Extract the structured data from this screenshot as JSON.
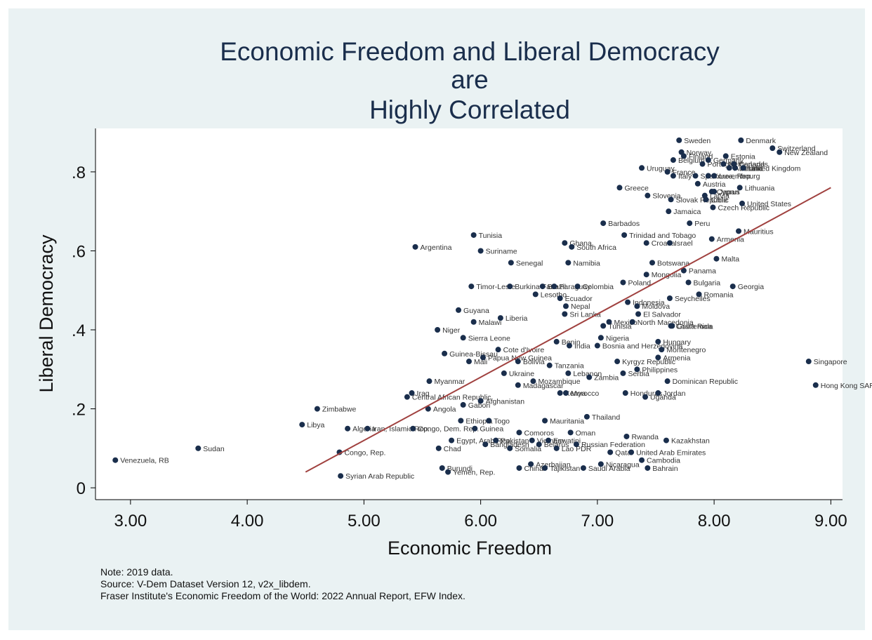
{
  "chart_data": {
    "type": "scatter",
    "title": [
      "Economic Freedom and Liberal Democracy",
      "are",
      "Highly Correlated"
    ],
    "xlabel": "Economic Freedom",
    "ylabel": "Liberal Democracy",
    "xlim": [
      2.7,
      9.1
    ],
    "ylim": [
      -0.03,
      0.91
    ],
    "xticks": [
      "3.00",
      "4.00",
      "5.00",
      "6.00",
      "7.00",
      "8.00",
      "9.00"
    ],
    "yticks": [
      ".8",
      ".6",
      ".4",
      ".2",
      "0"
    ],
    "grid": false,
    "colors": {
      "background": "#eaf2f3",
      "plot_area": "#ffffff",
      "marker": "#1a2e4c",
      "fit_line": "#a0413f",
      "title": "#1a2e4c"
    },
    "fit_line": [
      [
        4.5,
        0.04
      ],
      [
        9.0,
        0.76
      ]
    ],
    "points": [
      {
        "label": "Venezuela, RB",
        "x": 2.87,
        "y": 0.07
      },
      {
        "label": "Sudan",
        "x": 3.58,
        "y": 0.1
      },
      {
        "label": "Libya",
        "x": 4.47,
        "y": 0.16
      },
      {
        "label": "Zimbabwe",
        "x": 4.6,
        "y": 0.2
      },
      {
        "label": "Syrian Arab Republic",
        "x": 4.8,
        "y": 0.03
      },
      {
        "label": "Congo, Rep.",
        "x": 4.79,
        "y": 0.09
      },
      {
        "label": "Algeria",
        "x": 4.86,
        "y": 0.15
      },
      {
        "label": "Iran, Islamic Rep.",
        "x": 5.03,
        "y": 0.15
      },
      {
        "label": "Congo, Dem. Rep.",
        "x": 5.42,
        "y": 0.15
      },
      {
        "label": "Angola",
        "x": 5.55,
        "y": 0.2
      },
      {
        "label": "Argentina",
        "x": 5.44,
        "y": 0.61
      },
      {
        "label": "Iraq",
        "x": 5.41,
        "y": 0.24
      },
      {
        "label": "Central African Republic",
        "x": 5.37,
        "y": 0.23
      },
      {
        "label": "Myanmar",
        "x": 5.56,
        "y": 0.27
      },
      {
        "label": "Niger",
        "x": 5.63,
        "y": 0.4
      },
      {
        "label": "Chad",
        "x": 5.64,
        "y": 0.1
      },
      {
        "label": "Burundi",
        "x": 5.67,
        "y": 0.05
      },
      {
        "label": "Yemen, Rep.",
        "x": 5.72,
        "y": 0.04
      },
      {
        "label": "Guinea-Bissau",
        "x": 5.69,
        "y": 0.34
      },
      {
        "label": "Egypt, Arab Rep.",
        "x": 5.75,
        "y": 0.12
      },
      {
        "label": "Ethiopia",
        "x": 5.83,
        "y": 0.17
      },
      {
        "label": "Gabon",
        "x": 5.85,
        "y": 0.21
      },
      {
        "label": "Guyana",
        "x": 5.81,
        "y": 0.45
      },
      {
        "label": "Sierra Leone",
        "x": 5.85,
        "y": 0.38
      },
      {
        "label": "Mali",
        "x": 5.9,
        "y": 0.32
      },
      {
        "label": "Tunisia",
        "x": 5.94,
        "y": 0.64
      },
      {
        "label": "Malawi",
        "x": 5.94,
        "y": 0.42
      },
      {
        "label": "Timor-Leste",
        "x": 5.92,
        "y": 0.51
      },
      {
        "label": "Guinea",
        "x": 5.95,
        "y": 0.15
      },
      {
        "label": "Suriname",
        "x": 6.0,
        "y": 0.6
      },
      {
        "label": "Papua New Guinea",
        "x": 6.02,
        "y": 0.33
      },
      {
        "label": "Afghanistan",
        "x": 6.0,
        "y": 0.22
      },
      {
        "label": "Togo",
        "x": 6.07,
        "y": 0.17
      },
      {
        "label": "Liberia",
        "x": 6.17,
        "y": 0.43
      },
      {
        "label": "Cote d'Ivoire",
        "x": 6.15,
        "y": 0.35
      },
      {
        "label": "Pakistan",
        "x": 6.13,
        "y": 0.12
      },
      {
        "label": "Bangladesh",
        "x": 6.04,
        "y": 0.11
      },
      {
        "label": "Senegal",
        "x": 6.26,
        "y": 0.57
      },
      {
        "label": "Burkina Faso",
        "x": 6.25,
        "y": 0.51
      },
      {
        "label": "Ukraine",
        "x": 6.2,
        "y": 0.29
      },
      {
        "label": "Bolivia",
        "x": 6.32,
        "y": 0.32
      },
      {
        "label": "Madagascar",
        "x": 6.32,
        "y": 0.26
      },
      {
        "label": "Somalia",
        "x": 6.25,
        "y": 0.1
      },
      {
        "label": "Comoros",
        "x": 6.33,
        "y": 0.14
      },
      {
        "label": "China",
        "x": 6.33,
        "y": 0.05
      },
      {
        "label": "Lesotho",
        "x": 6.47,
        "y": 0.49
      },
      {
        "label": "Brazil",
        "x": 6.53,
        "y": 0.51
      },
      {
        "label": "Mozambique",
        "x": 6.45,
        "y": 0.27
      },
      {
        "label": "Azerbaijan",
        "x": 6.43,
        "y": 0.06
      },
      {
        "label": "Vietnam",
        "x": 6.44,
        "y": 0.12
      },
      {
        "label": "Tajikistan",
        "x": 6.55,
        "y": 0.05
      },
      {
        "label": "Belarus",
        "x": 6.5,
        "y": 0.11
      },
      {
        "label": "Mauritania",
        "x": 6.55,
        "y": 0.17
      },
      {
        "label": "Tanzania",
        "x": 6.59,
        "y": 0.31
      },
      {
        "label": "Eswatini",
        "x": 6.58,
        "y": 0.12
      },
      {
        "label": "Ghana",
        "x": 6.72,
        "y": 0.62
      },
      {
        "label": "South Africa",
        "x": 6.78,
        "y": 0.61
      },
      {
        "label": "Namibia",
        "x": 6.75,
        "y": 0.57
      },
      {
        "label": "Paraguay",
        "x": 6.63,
        "y": 0.51
      },
      {
        "label": "Ecuador",
        "x": 6.68,
        "y": 0.48
      },
      {
        "label": "Nepal",
        "x": 6.73,
        "y": 0.46
      },
      {
        "label": "Sri Lanka",
        "x": 6.72,
        "y": 0.44
      },
      {
        "label": "Colombia",
        "x": 6.83,
        "y": 0.51
      },
      {
        "label": "Benin",
        "x": 6.65,
        "y": 0.37
      },
      {
        "label": "India",
        "x": 6.76,
        "y": 0.36
      },
      {
        "label": "Lebanon",
        "x": 6.75,
        "y": 0.29
      },
      {
        "label": "Morocco",
        "x": 6.73,
        "y": 0.24
      },
      {
        "label": "Kenya",
        "x": 6.68,
        "y": 0.24
      },
      {
        "label": "Oman",
        "x": 6.77,
        "y": 0.14
      },
      {
        "label": "Lao PDR",
        "x": 6.65,
        "y": 0.1
      },
      {
        "label": "Russian Federation",
        "x": 6.82,
        "y": 0.11
      },
      {
        "label": "Saudi Arabia",
        "x": 6.88,
        "y": 0.05
      },
      {
        "label": "Zambia",
        "x": 6.93,
        "y": 0.28
      },
      {
        "label": "Thailand",
        "x": 6.91,
        "y": 0.18
      },
      {
        "label": "Barbados",
        "x": 7.05,
        "y": 0.67
      },
      {
        "label": "Nigeria",
        "x": 7.03,
        "y": 0.38
      },
      {
        "label": "Bosnia and Herzegovina",
        "x": 7.0,
        "y": 0.36
      },
      {
        "label": "Tunisia",
        "x": 7.05,
        "y": 0.41
      },
      {
        "label": "Mexico",
        "x": 7.1,
        "y": 0.42
      },
      {
        "label": "Nicaragua",
        "x": 7.03,
        "y": 0.06
      },
      {
        "label": "Qatar",
        "x": 7.11,
        "y": 0.09
      },
      {
        "label": "Kyrgyz Republic",
        "x": 7.17,
        "y": 0.32
      },
      {
        "label": "Greece",
        "x": 7.19,
        "y": 0.76
      },
      {
        "label": "Trinidad and Tobago",
        "x": 7.23,
        "y": 0.64
      },
      {
        "label": "Poland",
        "x": 7.22,
        "y": 0.52
      },
      {
        "label": "Indonesia",
        "x": 7.26,
        "y": 0.47
      },
      {
        "label": "El Salvador",
        "x": 7.35,
        "y": 0.44
      },
      {
        "label": "Moldova",
        "x": 7.34,
        "y": 0.46
      },
      {
        "label": "North Macedonia",
        "x": 7.3,
        "y": 0.42
      },
      {
        "label": "Serbia",
        "x": 7.22,
        "y": 0.29
      },
      {
        "label": "Philippines",
        "x": 7.34,
        "y": 0.3
      },
      {
        "label": "Honduras",
        "x": 7.24,
        "y": 0.24
      },
      {
        "label": "Rwanda",
        "x": 7.25,
        "y": 0.13
      },
      {
        "label": "United Arab Emirates",
        "x": 7.29,
        "y": 0.09
      },
      {
        "label": "Cambodia",
        "x": 7.38,
        "y": 0.07
      },
      {
        "label": "Bahrain",
        "x": 7.43,
        "y": 0.05
      },
      {
        "label": "Uganda",
        "x": 7.41,
        "y": 0.23
      },
      {
        "label": "Uruguay",
        "x": 7.38,
        "y": 0.81
      },
      {
        "label": "Slovenia",
        "x": 7.43,
        "y": 0.74
      },
      {
        "label": "Croatia",
        "x": 7.42,
        "y": 0.62
      },
      {
        "label": "Botswana",
        "x": 7.47,
        "y": 0.57
      },
      {
        "label": "Mongolia",
        "x": 7.42,
        "y": 0.54
      },
      {
        "label": "Hungary",
        "x": 7.52,
        "y": 0.37
      },
      {
        "label": "Montenegro",
        "x": 7.55,
        "y": 0.35
      },
      {
        "label": "Armenia",
        "x": 7.52,
        "y": 0.33
      },
      {
        "label": "Jordan",
        "x": 7.52,
        "y": 0.24
      },
      {
        "label": "Kazakhstan",
        "x": 7.59,
        "y": 0.12
      },
      {
        "label": "Dominican Republic",
        "x": 7.6,
        "y": 0.27
      },
      {
        "label": "Israel",
        "x": 7.62,
        "y": 0.62
      },
      {
        "label": "Jamaica",
        "x": 7.61,
        "y": 0.7
      },
      {
        "label": "Seychelles",
        "x": 7.62,
        "y": 0.48
      },
      {
        "label": "Costa Rica",
        "x": 7.63,
        "y": 0.41
      },
      {
        "label": "Guatemala",
        "x": 7.64,
        "y": 0.41
      },
      {
        "label": "Sweden",
        "x": 7.7,
        "y": 0.88
      },
      {
        "label": "Norway",
        "x": 7.72,
        "y": 0.85
      },
      {
        "label": "Belgium",
        "x": 7.65,
        "y": 0.83
      },
      {
        "label": "France",
        "x": 7.6,
        "y": 0.8
      },
      {
        "label": "Italy",
        "x": 7.65,
        "y": 0.79
      },
      {
        "label": "Slovak Republic",
        "x": 7.63,
        "y": 0.73
      },
      {
        "label": "Panama",
        "x": 7.74,
        "y": 0.55
      },
      {
        "label": "Bulgaria",
        "x": 7.78,
        "y": 0.52
      },
      {
        "label": "Peru",
        "x": 7.79,
        "y": 0.67
      },
      {
        "label": "Finland",
        "x": 7.74,
        "y": 0.84
      },
      {
        "label": "Spain",
        "x": 7.84,
        "y": 0.79
      },
      {
        "label": "Austria",
        "x": 7.86,
        "y": 0.77
      },
      {
        "label": "Romania",
        "x": 7.87,
        "y": 0.49
      },
      {
        "label": "Portugal",
        "x": 7.9,
        "y": 0.82
      },
      {
        "label": "Chile",
        "x": 7.93,
        "y": 0.73
      },
      {
        "label": "Latvia",
        "x": 7.92,
        "y": 0.74
      },
      {
        "label": "Korea, Rep.",
        "x": 7.95,
        "y": 0.79
      },
      {
        "label": "Germany",
        "x": 7.95,
        "y": 0.83
      },
      {
        "label": "Cyprus",
        "x": 7.98,
        "y": 0.75
      },
      {
        "label": "Czech Republic",
        "x": 7.99,
        "y": 0.71
      },
      {
        "label": "Armenia",
        "x": 7.98,
        "y": 0.63
      },
      {
        "label": "Japan",
        "x": 8.0,
        "y": 0.75
      },
      {
        "label": "Luxembourg",
        "x": 8.0,
        "y": 0.79
      },
      {
        "label": "Estonia",
        "x": 8.1,
        "y": 0.84
      },
      {
        "label": "Netherlands",
        "x": 8.08,
        "y": 0.82
      },
      {
        "label": "Mauritius",
        "x": 8.21,
        "y": 0.65
      },
      {
        "label": "Malta",
        "x": 8.02,
        "y": 0.58
      },
      {
        "label": "Georgia",
        "x": 8.16,
        "y": 0.51
      },
      {
        "label": "Ireland",
        "x": 8.18,
        "y": 0.81
      },
      {
        "label": "United Kingdom",
        "x": 8.25,
        "y": 0.81
      },
      {
        "label": "Canada",
        "x": 8.17,
        "y": 0.82
      },
      {
        "label": "Lithuania",
        "x": 8.22,
        "y": 0.76
      },
      {
        "label": "United States",
        "x": 8.24,
        "y": 0.72
      },
      {
        "label": "Denmark",
        "x": 8.23,
        "y": 0.88
      },
      {
        "label": "Australia",
        "x": 8.13,
        "y": 0.81
      },
      {
        "label": "Switzerland",
        "x": 8.5,
        "y": 0.86
      },
      {
        "label": "New Zealand",
        "x": 8.56,
        "y": 0.85
      },
      {
        "label": "Singapore",
        "x": 8.81,
        "y": 0.32
      },
      {
        "label": "Hong Kong SAR, China",
        "x": 8.87,
        "y": 0.26
      }
    ],
    "notes": [
      "Note: 2019 data.",
      "Source: V-Dem Dataset Version 12, v2x_libdem.",
      "Fraser Institute's Economic Freedom of the World: 2022 Annual Report, EFW Index."
    ]
  }
}
